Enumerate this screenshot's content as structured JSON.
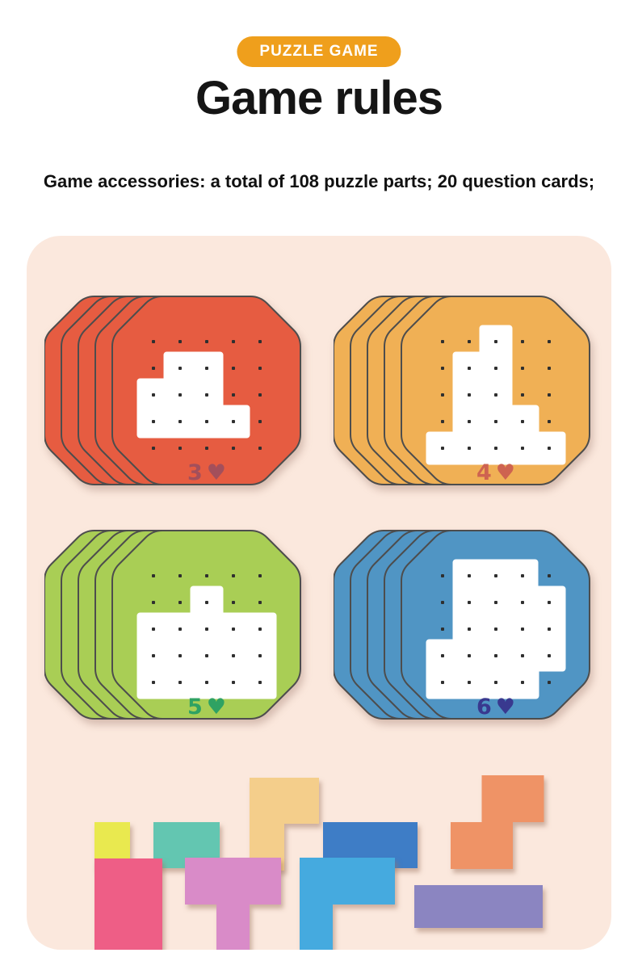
{
  "page": {
    "bg_color": "#FFFFFF"
  },
  "badge": {
    "label": "PUZZLE GAME",
    "bg_color": "#EF9F1C",
    "text_color": "#FFFFFF"
  },
  "title": "Game rules",
  "subtitle": "Game accessories: a total of 108 puzzle parts; 20 question cards;",
  "panel": {
    "bg_color": "#FBE8DD"
  },
  "dot_color": "#2F2F2F",
  "card_outline_color": "#4D4D4D",
  "cards": [
    {
      "name": "red",
      "number": "3",
      "heart": "♥",
      "color": "#E65C41",
      "label_color": "#A34F5B",
      "stack_count": 5,
      "grid": "5x5 dots",
      "shape_cells": [
        [
          2,
          2
        ],
        [
          2,
          3
        ],
        [
          3,
          1
        ],
        [
          3,
          2
        ],
        [
          3,
          3
        ],
        [
          4,
          1
        ],
        [
          4,
          2
        ],
        [
          4,
          3
        ],
        [
          4,
          4
        ]
      ]
    },
    {
      "name": "orange",
      "number": "4",
      "heart": "♥",
      "color": "#F0B055",
      "label_color": "#CE6350",
      "stack_count": 5,
      "grid": "5x5 dots",
      "shape_cells": [
        [
          1,
          3
        ],
        [
          2,
          2
        ],
        [
          2,
          3
        ],
        [
          3,
          2
        ],
        [
          3,
          3
        ],
        [
          4,
          2
        ],
        [
          4,
          3
        ],
        [
          4,
          4
        ],
        [
          5,
          1
        ],
        [
          5,
          2
        ],
        [
          5,
          3
        ],
        [
          5,
          4
        ],
        [
          5,
          5
        ]
      ]
    },
    {
      "name": "green",
      "number": "5",
      "heart": "♥",
      "color": "#A9CE55",
      "label_color": "#2FA263",
      "stack_count": 5,
      "grid": "5x5 dots",
      "shape_cells": [
        [
          2,
          3
        ],
        [
          3,
          1
        ],
        [
          3,
          2
        ],
        [
          3,
          3
        ],
        [
          3,
          4
        ],
        [
          3,
          5
        ],
        [
          4,
          1
        ],
        [
          4,
          2
        ],
        [
          4,
          3
        ],
        [
          4,
          4
        ],
        [
          4,
          5
        ],
        [
          5,
          1
        ],
        [
          5,
          2
        ],
        [
          5,
          3
        ],
        [
          5,
          4
        ],
        [
          5,
          5
        ]
      ]
    },
    {
      "name": "blue",
      "number": "6",
      "heart": "♥",
      "color": "#5095C4",
      "label_color": "#39398F",
      "stack_count": 5,
      "grid": "5x5 dots",
      "shape_cells": [
        [
          1,
          2
        ],
        [
          1,
          3
        ],
        [
          1,
          4
        ],
        [
          2,
          2
        ],
        [
          2,
          3
        ],
        [
          2,
          4
        ],
        [
          2,
          5
        ],
        [
          3,
          2
        ],
        [
          3,
          3
        ],
        [
          3,
          4
        ],
        [
          3,
          5
        ],
        [
          4,
          1
        ],
        [
          4,
          2
        ],
        [
          4,
          3
        ],
        [
          4,
          4
        ],
        [
          4,
          5
        ],
        [
          5,
          1
        ],
        [
          5,
          2
        ],
        [
          5,
          3
        ],
        [
          5,
          4
        ]
      ]
    }
  ],
  "pieces": [
    {
      "name": "yellow-square",
      "color": "#E9E94F",
      "shape": "1x1 square"
    },
    {
      "name": "teal-rectangle",
      "color": "#63C6B1",
      "shape": "2x1 rectangle"
    },
    {
      "name": "tan-corner",
      "color": "#F4CE8B",
      "shape": "L corner"
    },
    {
      "name": "blue-rectangle",
      "color": "#3E7DC6",
      "shape": "2x1 rectangle"
    },
    {
      "name": "orange-s",
      "color": "#EF9366",
      "shape": "S piece"
    },
    {
      "name": "pink-square",
      "color": "#EE5E86",
      "shape": "2x2 square"
    },
    {
      "name": "orchid-t",
      "color": "#D98BC8",
      "shape": "T piece"
    },
    {
      "name": "sky-corner",
      "color": "#45AADF",
      "shape": "L corner"
    },
    {
      "name": "purple-rectangle",
      "color": "#8B85C1",
      "shape": "3x1 rectangle"
    }
  ]
}
